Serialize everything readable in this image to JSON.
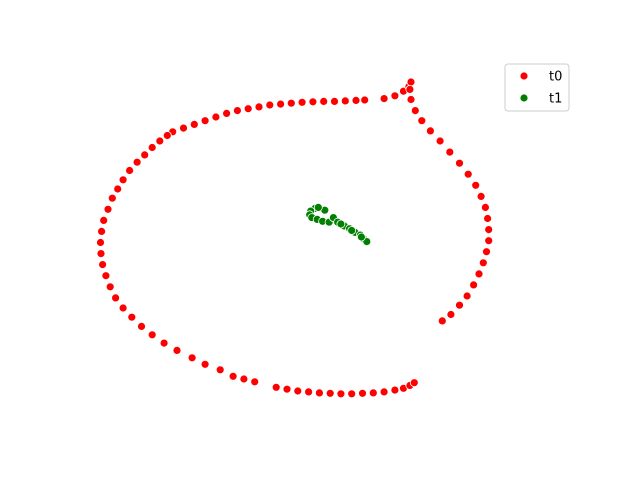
{
  "chart_data": {
    "type": "scatter",
    "title": "",
    "xlabel": "",
    "ylabel": "",
    "axes_visible": false,
    "grid": false,
    "xlim": [
      -23,
      23
    ],
    "ylim": [
      -20,
      20
    ],
    "legend": {
      "placement": "top-right"
    },
    "series": [
      {
        "name": "t0",
        "color": "#ff0000",
        "points": [
          [
            -14.4,
            12.0
          ],
          [
            -13.4,
            12.4
          ],
          [
            -12.4,
            12.8
          ],
          [
            -11.4,
            13.2
          ],
          [
            -10.4,
            13.6
          ],
          [
            -9.4,
            14.0
          ],
          [
            -8.4,
            14.3
          ],
          [
            -7.4,
            14.5
          ],
          [
            -6.4,
            14.7
          ],
          [
            -5.4,
            14.9
          ],
          [
            -4.4,
            15.0
          ],
          [
            -3.4,
            15.1
          ],
          [
            -2.4,
            15.2
          ],
          [
            -1.4,
            15.25
          ],
          [
            -0.4,
            15.3
          ],
          [
            0.6,
            15.3
          ],
          [
            1.6,
            15.35
          ],
          [
            2.6,
            15.4
          ],
          [
            3.4,
            15.45
          ],
          [
            5.2,
            15.6
          ],
          [
            6.2,
            15.9
          ],
          [
            7.0,
            16.4
          ],
          [
            7.5,
            16.9
          ],
          [
            7.7,
            17.4
          ],
          [
            -14.9,
            11.6
          ],
          [
            -15.6,
            11.0
          ],
          [
            -16.3,
            10.3
          ],
          [
            -17.0,
            9.5
          ],
          [
            -17.7,
            8.7
          ],
          [
            -18.4,
            7.8
          ],
          [
            -19.0,
            6.8
          ],
          [
            -19.5,
            5.8
          ],
          [
            -20.0,
            4.8
          ],
          [
            -20.4,
            3.6
          ],
          [
            -20.8,
            2.4
          ],
          [
            -21.0,
            1.2
          ],
          [
            -21.1,
            0.0
          ],
          [
            -21.05,
            -1.2
          ],
          [
            -20.9,
            -2.4
          ],
          [
            -20.6,
            -3.6
          ],
          [
            -20.2,
            -4.8
          ],
          [
            -19.7,
            -6.0
          ],
          [
            -19.0,
            -7.1
          ],
          [
            -18.2,
            -8.1
          ],
          [
            -17.3,
            -9.1
          ],
          [
            -16.3,
            -10.0
          ],
          [
            -15.2,
            -10.9
          ],
          [
            -14.0,
            -11.7
          ],
          [
            -12.6,
            -12.5
          ],
          [
            -11.4,
            -13.2
          ],
          [
            -10.0,
            -13.8
          ],
          [
            -8.8,
            -14.5
          ],
          [
            -7.8,
            -14.8
          ],
          [
            -6.8,
            -15.1
          ],
          [
            -4.8,
            -15.7
          ],
          [
            -3.8,
            -15.9
          ],
          [
            -2.8,
            -16.1
          ],
          [
            -1.8,
            -16.2
          ],
          [
            -0.8,
            -16.3
          ],
          [
            0.2,
            -16.35
          ],
          [
            1.2,
            -16.4
          ],
          [
            2.2,
            -16.4
          ],
          [
            3.2,
            -16.35
          ],
          [
            4.2,
            -16.3
          ],
          [
            5.2,
            -16.2
          ],
          [
            6.2,
            -16.0
          ],
          [
            7.0,
            -15.8
          ],
          [
            7.6,
            -15.5
          ],
          [
            8.0,
            -15.2
          ],
          [
            10.6,
            -8.5
          ],
          [
            11.4,
            -7.8
          ],
          [
            12.2,
            -6.8
          ],
          [
            12.9,
            -5.8
          ],
          [
            13.5,
            -4.6
          ],
          [
            14.0,
            -3.4
          ],
          [
            14.4,
            -2.2
          ],
          [
            14.7,
            -1.0
          ],
          [
            14.9,
            0.2
          ],
          [
            14.9,
            1.4
          ],
          [
            14.8,
            2.6
          ],
          [
            14.6,
            3.8
          ],
          [
            14.2,
            5.0
          ],
          [
            13.7,
            6.2
          ],
          [
            13.0,
            7.4
          ],
          [
            12.2,
            8.6
          ],
          [
            11.3,
            9.8
          ],
          [
            10.4,
            11.0
          ],
          [
            9.5,
            12.1
          ],
          [
            8.7,
            13.2
          ],
          [
            8.1,
            14.3
          ],
          [
            7.7,
            15.5
          ],
          [
            7.6,
            16.6
          ]
        ]
      },
      {
        "name": "t1",
        "color": "#008000",
        "points": [
          [
            -1.2,
            3.7
          ],
          [
            -1.6,
            3.4
          ],
          [
            -1.7,
            3.0
          ],
          [
            -1.5,
            2.7
          ],
          [
            -1.0,
            2.5
          ],
          [
            -0.5,
            2.3
          ],
          [
            0.1,
            2.2
          ],
          [
            0.5,
            2.7
          ],
          [
            -0.3,
            3.5
          ],
          [
            -0.9,
            3.8
          ],
          [
            0.9,
            2.2
          ],
          [
            1.5,
            1.8
          ],
          [
            2.0,
            1.5
          ],
          [
            2.5,
            1.1
          ],
          [
            3.0,
            0.8
          ],
          [
            3.3,
            0.4
          ],
          [
            3.6,
            0.1
          ],
          [
            3.1,
            0.6
          ],
          [
            2.2,
            1.3
          ],
          [
            1.2,
            2.0
          ]
        ]
      }
    ]
  }
}
